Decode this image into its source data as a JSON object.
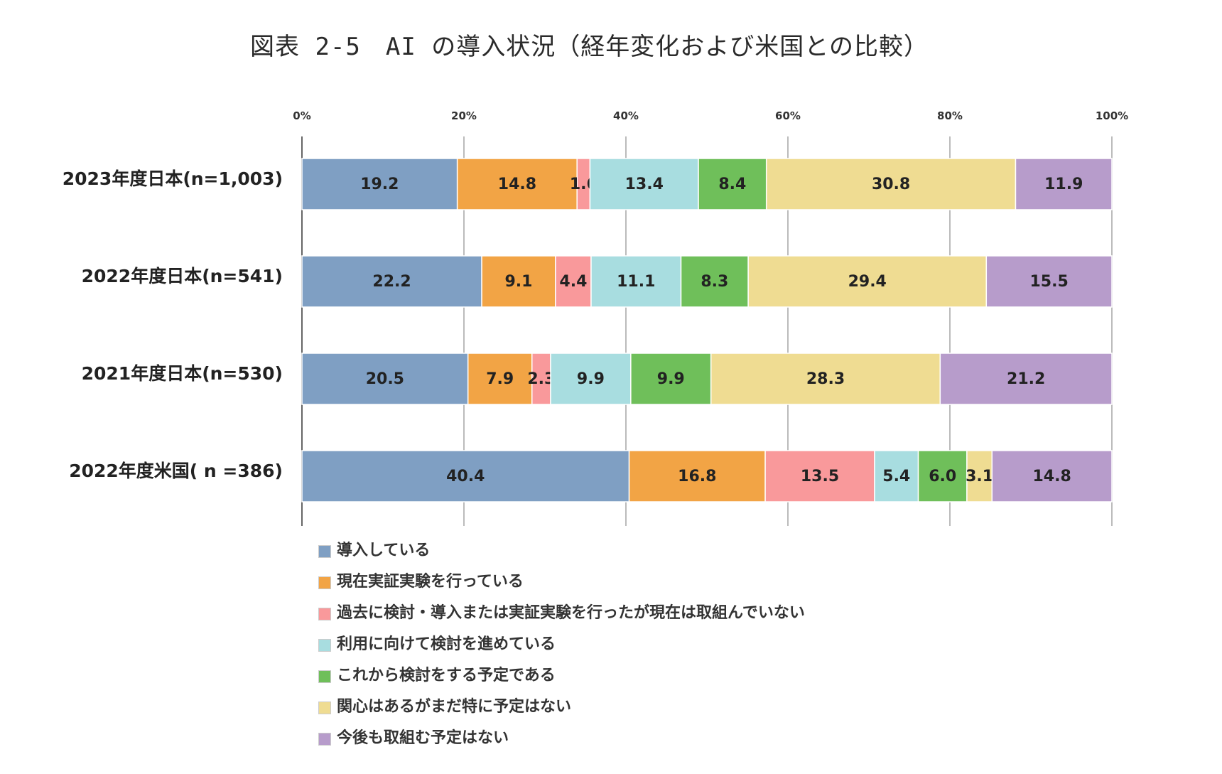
{
  "title": "図表 2-5　AI の導入状況（経年変化および米国との比較）",
  "chart_data": {
    "type": "bar",
    "orientation": "horizontal",
    "stacked": true,
    "title": "図表 2-5　AI の導入状況（経年変化および米国との比較）",
    "xlabel": "",
    "ylabel": "",
    "xlim": [
      0,
      100
    ],
    "grid": true,
    "legend_position": "bottom",
    "ticks": [
      "0%",
      "20%",
      "40%",
      "60%",
      "80%",
      "100%"
    ],
    "categories": [
      "2023年度日本(n=1,003)",
      "2022年度日本(n=541)",
      "2021年度日本(n=530)",
      "2022年度米国( n =386)"
    ],
    "series": [
      {
        "name": "導入している",
        "color": "#7f9fc3",
        "values": [
          19.2,
          22.2,
          20.5,
          40.4
        ]
      },
      {
        "name": "現在実証実験を行っている",
        "color": "#f2a445",
        "values": [
          14.8,
          9.1,
          7.9,
          16.8
        ]
      },
      {
        "name": "過去に検討・導入または実証実験を行ったが現在は取組んでいない",
        "color": "#f9999b",
        "values": [
          1.6,
          4.4,
          2.3,
          13.5
        ]
      },
      {
        "name": "利用に向けて検討を進めている",
        "color": "#a8dde0",
        "values": [
          13.4,
          11.1,
          9.9,
          5.4
        ]
      },
      {
        "name": "これから検討をする予定である",
        "color": "#6fbf5a",
        "values": [
          8.4,
          8.3,
          9.9,
          6.0
        ]
      },
      {
        "name": "関心はあるがまだ特に予定はない",
        "color": "#efdc92",
        "values": [
          30.8,
          29.4,
          28.3,
          3.1
        ]
      },
      {
        "name": "今後も取組む予定はない",
        "color": "#b79ccb",
        "values": [
          11.9,
          15.5,
          21.2,
          14.8
        ]
      }
    ]
  }
}
